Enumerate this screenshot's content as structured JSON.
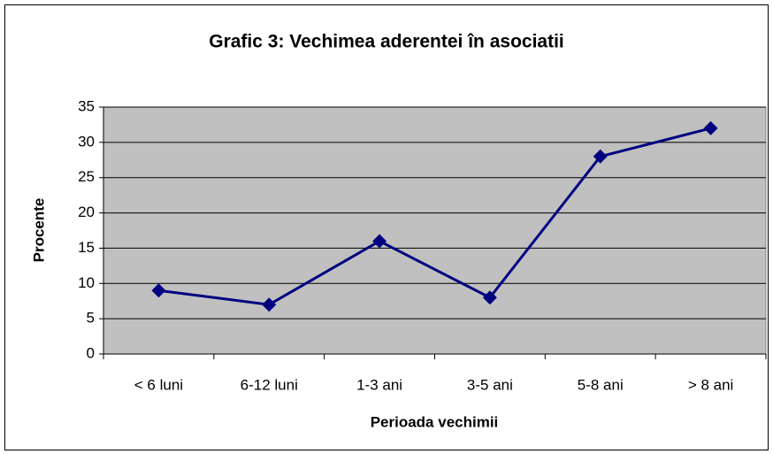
{
  "chart_data": {
    "type": "line",
    "title": "Grafic 3: Vechimea aderentei în asociatii",
    "x_label": "Perioada vechimii",
    "y_label": "Procente",
    "categories": [
      "< 6 luni",
      "6-12 luni",
      "1-3 ani",
      "3-5 ani",
      "5-8 ani",
      "> 8 ani"
    ],
    "values": [
      9,
      7,
      16,
      8,
      28,
      32
    ],
    "color": "#000080",
    "ylim": [
      0,
      35
    ],
    "yticks": [
      0,
      5,
      10,
      15,
      20,
      25,
      30,
      35
    ],
    "grid": true
  }
}
